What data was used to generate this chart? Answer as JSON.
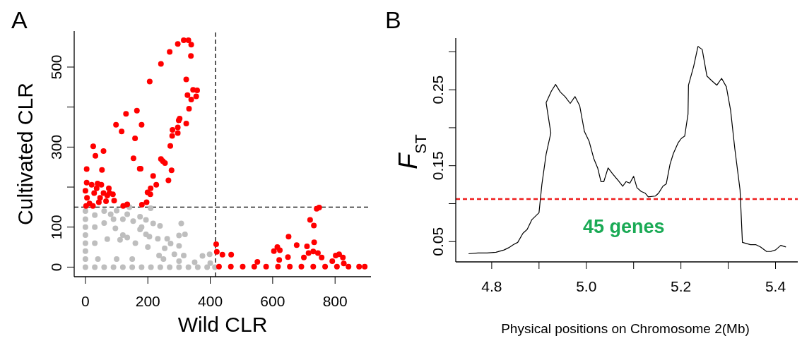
{
  "chart_data": [
    {
      "type": "scatter",
      "title": "A",
      "xlabel": "Wild CLR",
      "ylabel": "Cultivated CLR",
      "xlim": [
        -36,
        915
      ],
      "ylim": [
        -24,
        590
      ],
      "xticks": [
        0,
        200,
        400,
        600,
        800
      ],
      "yticks": [
        0,
        100,
        {
          "value": 200,
          "label": null
        },
        300,
        {
          "value": 400,
          "label": null
        },
        500
      ],
      "grid": false,
      "legend": false,
      "marker": "circle",
      "ref_lines": [
        {
          "axis": "x",
          "value": 417,
          "color": "#000000",
          "line_style": "dashed"
        },
        {
          "axis": "y",
          "value": 150,
          "color": "#000000",
          "line_style": "dashed"
        }
      ],
      "series": [
        {
          "color": "#bebebe",
          "x": [
            0,
            30,
            60,
            90,
            120,
            150,
            180,
            210,
            240,
            270,
            300,
            330,
            360,
            390,
            415,
            0,
            0,
            0,
            0,
            0,
            0,
            0,
            30,
            60,
            30,
            60,
            90,
            30,
            70,
            120,
            160,
            200,
            40,
            100,
            150,
            250,
            300,
            350,
            400,
            180,
            120,
            81,
            100,
            141,
            134,
            153,
            175,
            194,
            209,
            217,
            239,
            175,
            194,
            205,
            232,
            262,
            273,
            300,
            307,
            319,
            300,
            285,
            236,
            315,
            375,
            398,
            254,
            134,
            111,
            96
          ],
          "values": [
            0,
            0,
            0,
            0,
            0,
            0,
            0,
            0,
            0,
            0,
            0,
            0,
            0,
            0,
            0,
            20,
            40,
            60,
            80,
            100,
            120,
            140,
            130,
            140,
            100,
            110,
            120,
            60,
            70,
            80,
            60,
            50,
            20,
            20,
            20,
            20,
            15,
            12,
            10,
            100,
            120,
            132,
            141,
            150,
            132,
            115,
            126,
            118,
            147,
            109,
            103,
            94,
            82,
            76,
            71,
            71,
            59,
            79,
            109,
            82,
            53,
            32,
            29,
            29,
            28,
            32,
            47,
            74,
            68,
            97
          ]
        },
        {
          "color": "#ff0000",
          "x": [
            315,
            330,
            339,
            296,
            270,
            338,
            242,
            206,
            323,
            345,
            358,
            327,
            355,
            339,
            332,
            302,
            299,
            296,
            279,
            296,
            323,
            278,
            272,
            242,
            248,
            255,
            276,
            266,
            217,
            227,
            209,
            208,
            199,
            196,
            181,
            134,
            121,
            174,
            177,
            154,
            159,
            180,
            165,
            130,
            98,
            116,
            25,
            58,
            32,
            4,
            53,
            4,
            20,
            39,
            51,
            75,
            88,
            92,
            66,
            43,
            13,
            0,
            5,
            28,
            58,
            70,
            2,
            24,
            47,
            36,
            77,
            419,
            421,
            439,
            467,
            551,
            651,
            677,
            710,
            720,
            732,
            733,
            741,
            749,
            604,
            615,
            623,
            621,
            649,
            700,
            715,
            730,
            745,
            757,
            791,
            802,
            813,
            825,
            828,
            428,
            466,
            504,
            541,
            579,
            617,
            655,
            692,
            730,
            768,
            806,
            843,
            877,
            895
          ],
          "values": [
            567,
            567,
            556,
            558,
            538,
            528,
            508,
            464,
            469,
            443,
            442,
            430,
            427,
            419,
            396,
            371,
            367,
            349,
            343,
            335,
            359,
            328,
            303,
            270,
            265,
            260,
            242,
            217,
            228,
            206,
            197,
            182,
            187,
            162,
            156,
            157,
            153,
            246,
            246,
            272,
            322,
            356,
            391,
            383,
            356,
            339,
            302,
            290,
            278,
            245,
            243,
            211,
            206,
            209,
            206,
            197,
            182,
            166,
            165,
            162,
            159,
            191,
            173,
            185,
            185,
            179,
            153,
            153,
            173,
            197,
            185,
            57,
            38,
            31,
            31,
            13,
            76,
            55,
            52,
            118,
            104,
            62,
            146,
            149,
            40,
            50,
            42,
            18,
            25,
            24,
            35,
            39,
            35,
            24,
            15,
            29,
            32,
            24,
            9,
            1,
            1,
            1,
            1,
            1,
            1,
            1,
            1,
            1,
            1,
            1,
            1,
            1,
            1
          ]
        }
      ]
    },
    {
      "type": "line",
      "title": "B",
      "xlabel": "Physical positions on Chromosome 2(Mb)",
      "ylabel": "F$_{ST}$",
      "xlim": [
        4.724,
        5.447
      ],
      "ylim": [
        0.0233,
        0.318
      ],
      "xticks": [
        4.8,
        {
          "value": 4.9,
          "label": null
        },
        {
          "value": 5,
          "label": "5.0"
        },
        {
          "value": 5.1,
          "label": null
        },
        5.2,
        {
          "value": 5.3,
          "label": null
        },
        5.4
      ],
      "yticks": [
        0.05,
        {
          "value": 0.1,
          "label": null
        },
        0.15,
        {
          "value": 0.2,
          "label": null
        },
        0.25,
        {
          "value": 0.3,
          "label": null
        }
      ],
      "grid": false,
      "legend": false,
      "marker": "none",
      "line_style": "solid",
      "annotations": [
        "45 genes"
      ],
      "ref_lines": [
        {
          "axis": "y",
          "value": 0.106,
          "color": "#ee1c1c",
          "line_style": "dashed"
        }
      ],
      "series": [
        {
          "color": "#000000",
          "x": [
            4.751,
            4.771,
            4.79,
            4.809,
            4.826,
            4.836,
            4.846,
            4.855,
            4.866,
            4.875,
            4.885,
            4.9,
            4.906,
            4.915,
            4.925,
            4.915,
            4.926,
            4.935,
            4.945,
            4.955,
            4.966,
            4.976,
            4.986,
            4.996,
            5.006,
            5.016,
            5.024,
            5.031,
            5.037,
            5.046,
            5.056,
            5.068,
            5.077,
            5.084,
            5.092,
            5.1,
            5.107,
            5.116,
            5.124,
            5.131,
            5.146,
            5.153,
            5.162,
            5.169,
            5.177,
            5.184,
            5.194,
            5.201,
            5.208,
            5.215,
            5.216,
            5.227,
            5.236,
            5.245,
            5.255,
            5.265,
            5.276,
            5.286,
            5.296,
            5.305,
            5.314,
            5.325,
            5.33,
            5.347,
            5.358,
            5.368,
            5.381,
            5.39,
            5.4,
            5.411,
            5.422
          ],
          "values": [
            0.034,
            0.035,
            0.035,
            0.036,
            0.039,
            0.042,
            0.046,
            0.049,
            0.061,
            0.066,
            0.079,
            0.088,
            0.125,
            0.165,
            0.193,
            0.233,
            0.248,
            0.257,
            0.247,
            0.241,
            0.232,
            0.241,
            0.229,
            0.195,
            0.182,
            0.159,
            0.147,
            0.129,
            0.129,
            0.147,
            0.139,
            0.13,
            0.123,
            0.129,
            0.127,
            0.136,
            0.121,
            0.116,
            0.114,
            0.109,
            0.11,
            0.114,
            0.123,
            0.126,
            0.152,
            0.166,
            0.18,
            0.186,
            0.189,
            0.218,
            0.256,
            0.281,
            0.307,
            0.303,
            0.268,
            0.262,
            0.256,
            0.265,
            0.254,
            0.223,
            0.172,
            0.118,
            0.049,
            0.046,
            0.046,
            0.043,
            0.037,
            0.037,
            0.039,
            0.045,
            0.043
          ]
        }
      ]
    }
  ]
}
